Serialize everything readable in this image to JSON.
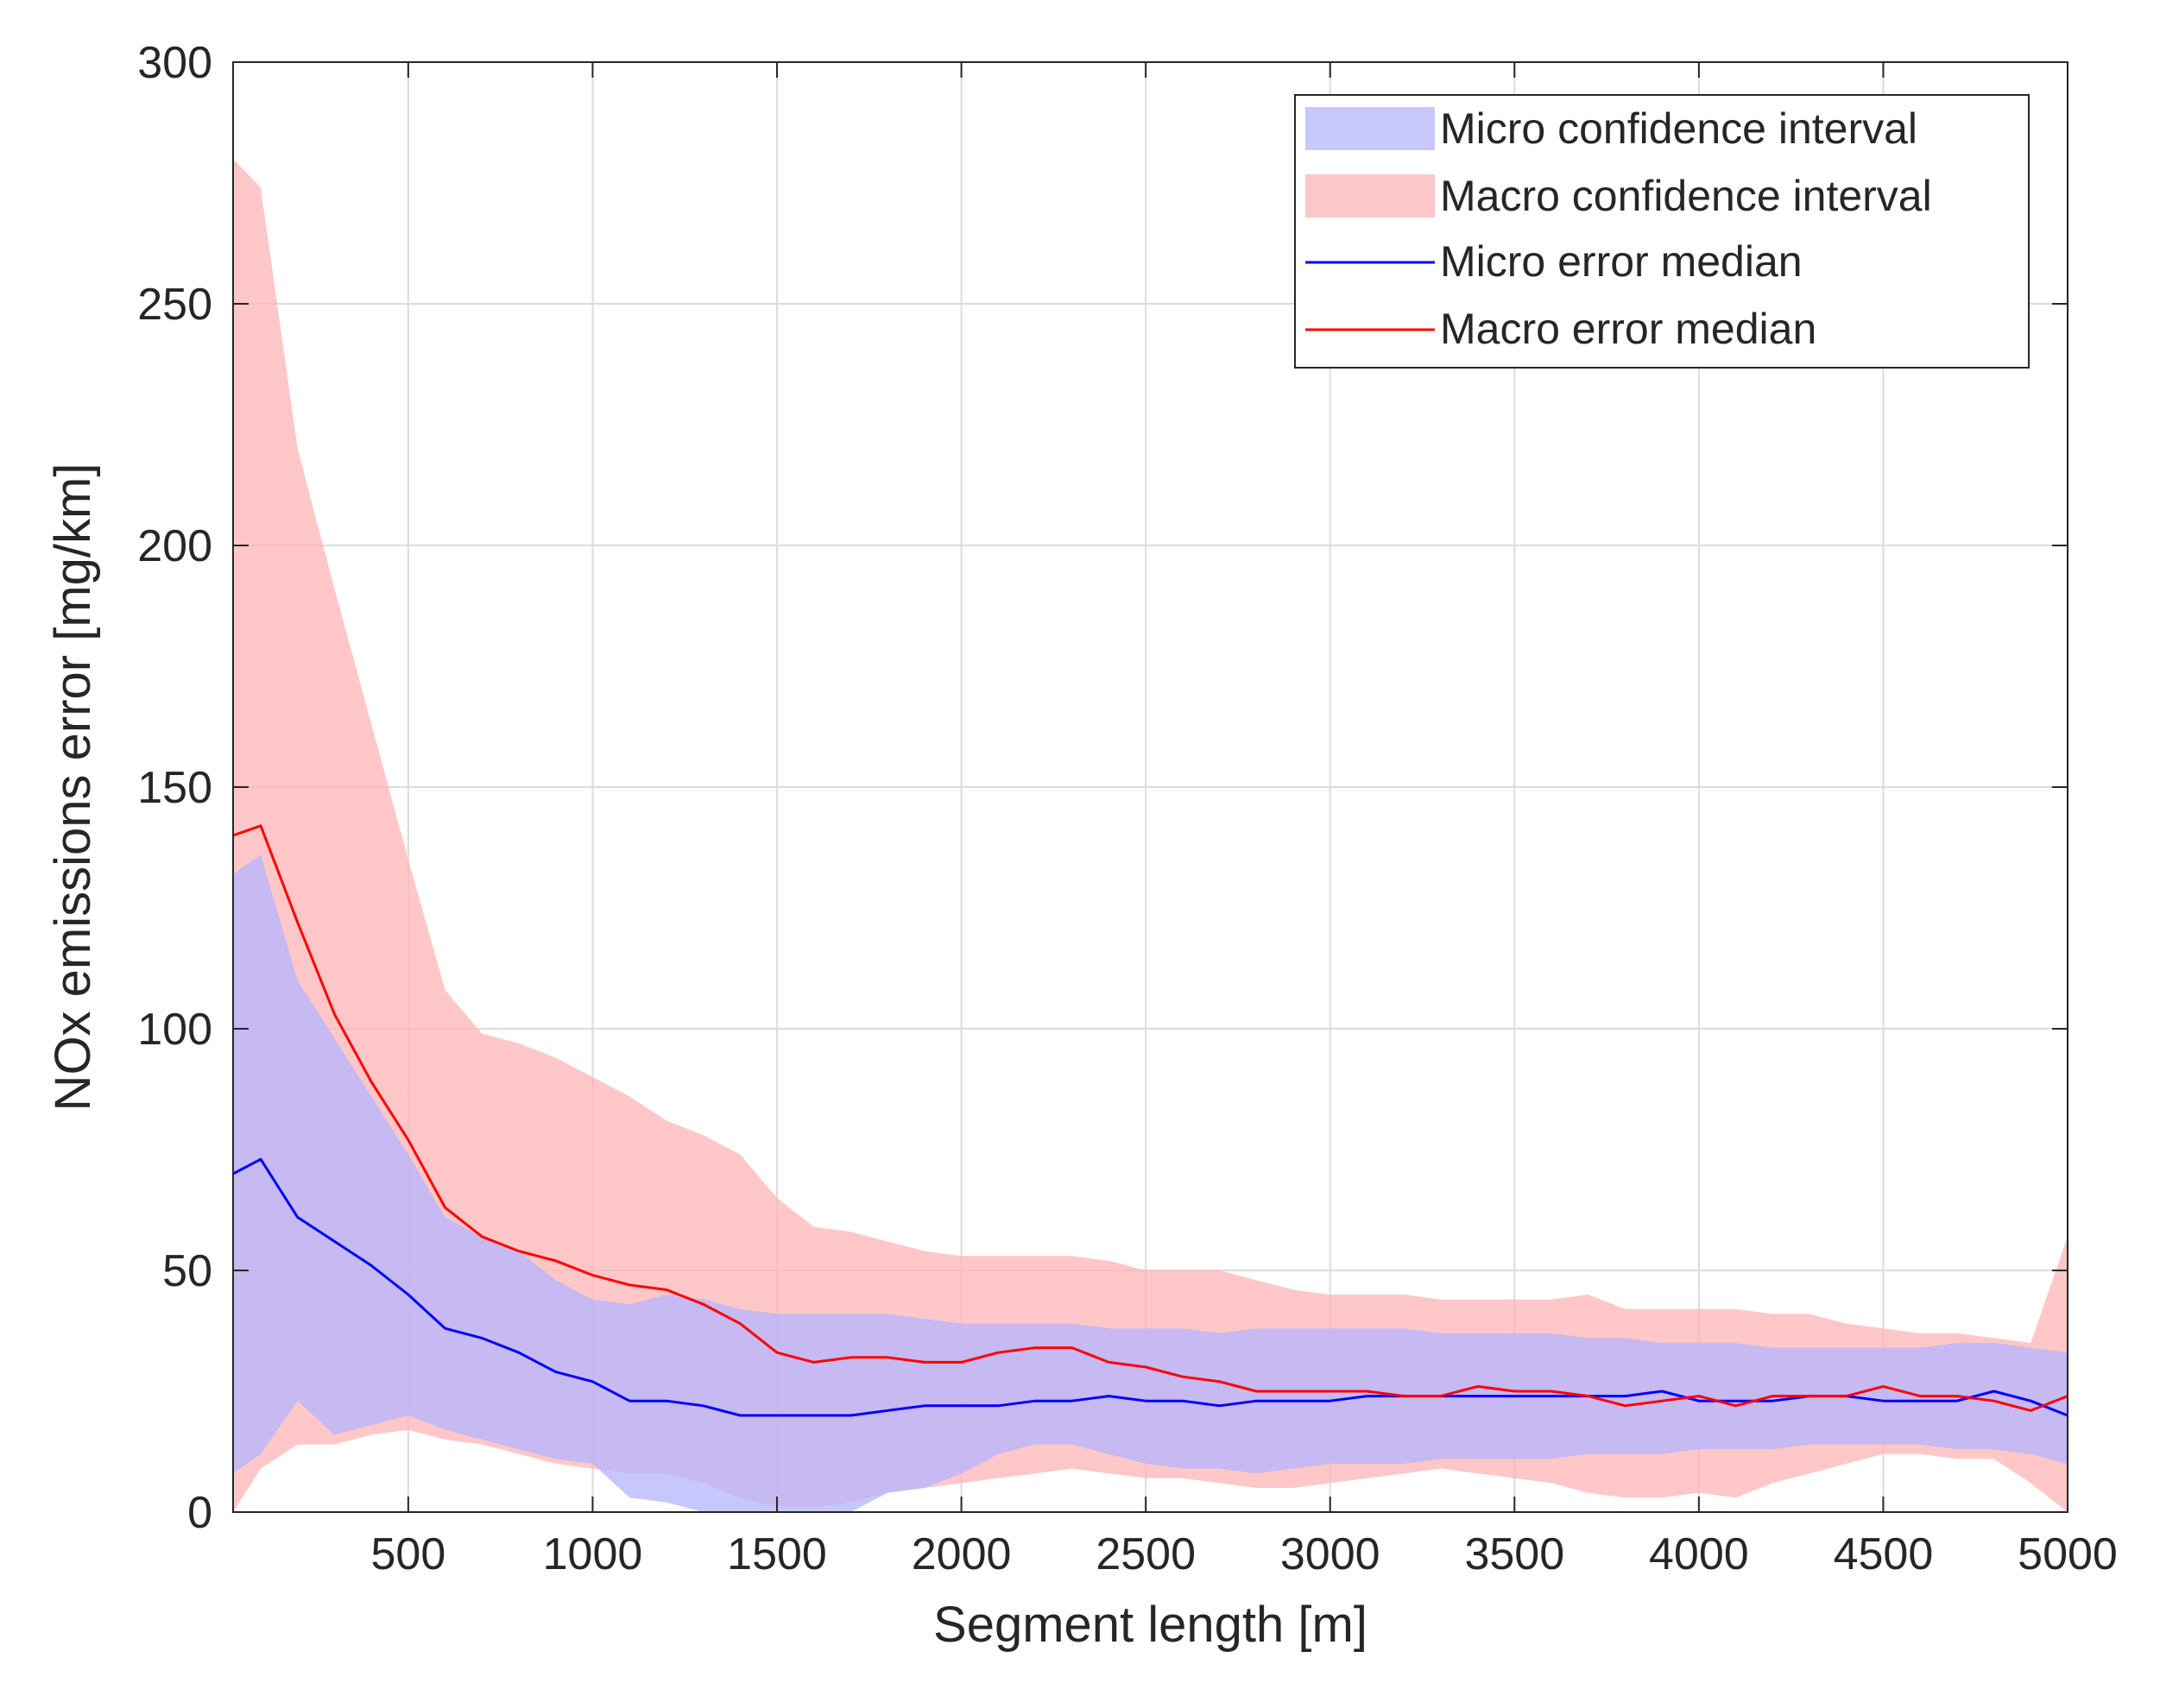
{
  "chart_data": {
    "type": "area",
    "title": "",
    "xlabel": "Segment length [m]",
    "ylabel": "NOx emissions error [mg/km]",
    "xlim": [
      25,
      5000
    ],
    "ylim": [
      0,
      300
    ],
    "xticks": [
      500,
      1000,
      1500,
      2000,
      2500,
      3000,
      3500,
      4000,
      4500,
      5000
    ],
    "yticks": [
      0,
      50,
      100,
      150,
      200,
      250,
      300
    ],
    "grid": true,
    "legend_position": "top-right",
    "legend": [
      {
        "label": "Micro confidence interval",
        "kind": "area",
        "color": "#c8c8ff"
      },
      {
        "label": "Macro confidence interval",
        "kind": "area",
        "color": "#ffc8c8"
      },
      {
        "label": "Micro error median",
        "kind": "line",
        "color": "#0000ff"
      },
      {
        "label": "Macro error median",
        "kind": "line",
        "color": "#ff0000"
      }
    ],
    "x": [
      25,
      100,
      200,
      300,
      400,
      500,
      600,
      700,
      800,
      900,
      1000,
      1100,
      1200,
      1300,
      1400,
      1500,
      1600,
      1700,
      1800,
      1900,
      2000,
      2100,
      2200,
      2300,
      2400,
      2500,
      2600,
      2700,
      2800,
      2900,
      3000,
      3100,
      3200,
      3300,
      3400,
      3500,
      3600,
      3700,
      3800,
      3900,
      4000,
      4100,
      4200,
      4300,
      4400,
      4500,
      4600,
      4700,
      4800,
      4900,
      5000
    ],
    "series": [
      {
        "name": "Micro confidence interval",
        "kind": "band",
        "color": "#b4b4ff",
        "opacity": 0.75,
        "upper": [
          132,
          136,
          110,
          98,
          86,
          74,
          61,
          57,
          54,
          48,
          44,
          43,
          45,
          44,
          42,
          41,
          41,
          41,
          41,
          40,
          39,
          39,
          39,
          39,
          38,
          38,
          38,
          37,
          38,
          38,
          38,
          38,
          38,
          37,
          37,
          37,
          37,
          36,
          36,
          35,
          35,
          35,
          34,
          34,
          34,
          34,
          34,
          35,
          35,
          34,
          33
        ],
        "lower": [
          8,
          12,
          23,
          16,
          18,
          20,
          17,
          15,
          13,
          11,
          10,
          3,
          2,
          0,
          0,
          0,
          0,
          0,
          4,
          5,
          8,
          12,
          14,
          14,
          12,
          10,
          9,
          9,
          8,
          9,
          10,
          10,
          10,
          11,
          11,
          11,
          11,
          12,
          12,
          12,
          13,
          13,
          13,
          14,
          14,
          14,
          14,
          13,
          13,
          12,
          10
        ]
      },
      {
        "name": "Macro confidence interval",
        "kind": "band",
        "color": "#ffb4b4",
        "opacity": 0.75,
        "upper": [
          280,
          274,
          220,
          191,
          163,
          135,
          108,
          99,
          97,
          94,
          90,
          86,
          81,
          78,
          74,
          65,
          59,
          58,
          56,
          54,
          53,
          53,
          53,
          53,
          52,
          50,
          50,
          50,
          48,
          46,
          45,
          45,
          45,
          44,
          44,
          44,
          44,
          45,
          42,
          42,
          42,
          42,
          41,
          41,
          39,
          38,
          37,
          37,
          36,
          35,
          57
        ],
        "lower": [
          0,
          9,
          14,
          14,
          16,
          17,
          15,
          14,
          12,
          10,
          9,
          8,
          8,
          6,
          3,
          1,
          1,
          2,
          4,
          5,
          6,
          7,
          8,
          9,
          8,
          7,
          7,
          6,
          5,
          5,
          6,
          7,
          8,
          9,
          8,
          7,
          6,
          4,
          3,
          3,
          4,
          3,
          6,
          8,
          10,
          12,
          12,
          11,
          11,
          6,
          0
        ]
      },
      {
        "name": "Micro error median",
        "kind": "line",
        "color": "#0000ff",
        "values": [
          70,
          73,
          61,
          56,
          51,
          45,
          38,
          36,
          33,
          29,
          27,
          23,
          23,
          22,
          20,
          20,
          20,
          20,
          21,
          22,
          22,
          22,
          23,
          23,
          24,
          23,
          23,
          22,
          23,
          23,
          23,
          24,
          24,
          24,
          24,
          24,
          24,
          24,
          24,
          25,
          23,
          23,
          23,
          24,
          24,
          23,
          23,
          23,
          25,
          23,
          20
        ]
      },
      {
        "name": "Macro error median",
        "kind": "line",
        "color": "#ff0000",
        "values": [
          140,
          142,
          122,
          103,
          89,
          77,
          63,
          57,
          54,
          52,
          49,
          47,
          46,
          43,
          39,
          33,
          31,
          32,
          32,
          31,
          31,
          33,
          34,
          34,
          31,
          30,
          28,
          27,
          25,
          25,
          25,
          25,
          24,
          24,
          26,
          25,
          25,
          24,
          22,
          23,
          24,
          22,
          24,
          24,
          24,
          26,
          24,
          24,
          23,
          21,
          24
        ]
      }
    ]
  }
}
